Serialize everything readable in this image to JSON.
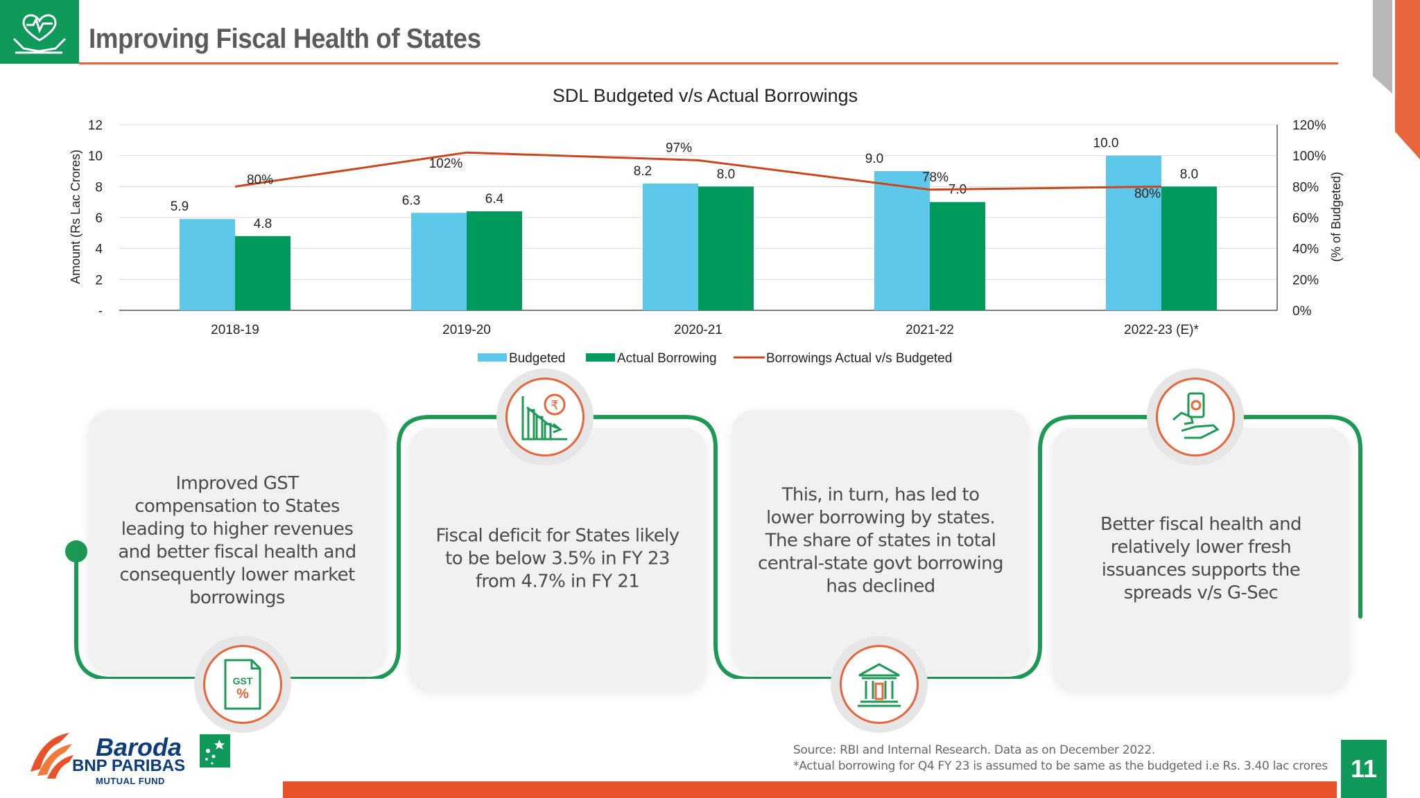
{
  "header": {
    "title": "Improving Fiscal Health of States"
  },
  "colors": {
    "green": "#0f9a5c",
    "orange": "#e8643a",
    "budgeted": "#5ec8ea",
    "actual": "#009a5c",
    "line": "#c8471e"
  },
  "chart_data": {
    "type": "bar",
    "title": "SDL Budgeted v/s Actual Borrowings",
    "categories": [
      "2018-19",
      "2019-20",
      "2020-21",
      "2021-22",
      "2022-23 (E)*"
    ],
    "series": [
      {
        "name": "Budgeted",
        "values": [
          5.9,
          6.3,
          8.2,
          9.0,
          10.0
        ],
        "labels": [
          "5.9",
          "6.3",
          "8.2",
          "9.0",
          "10.0"
        ]
      },
      {
        "name": "Actual Borrowing",
        "values": [
          4.8,
          6.4,
          8.0,
          7.0,
          8.0
        ],
        "labels": [
          "4.8",
          "6.4",
          "8.0",
          "7.0",
          "8.0"
        ]
      },
      {
        "name": "Borrowings Actual v/s Budgeted",
        "type": "line",
        "axis": "right",
        "values": [
          80,
          102,
          97,
          78,
          80
        ],
        "labels": [
          "80%",
          "102%",
          "97%",
          "78%",
          "80%"
        ]
      }
    ],
    "ylabel": "Amount (Rs Lac Crores)",
    "ylabel_right": "(% of Budgeted)",
    "ylim": [
      0,
      12
    ],
    "ylim_right": [
      0,
      120
    ],
    "yticks": [
      "-",
      "2",
      "4",
      "6",
      "8",
      "10",
      "12"
    ],
    "yticks_right": [
      "0%",
      "20%",
      "40%",
      "60%",
      "80%",
      "100%",
      "120%"
    ],
    "legend": "bottom",
    "grid": true
  },
  "cards": [
    {
      "text": "Improved GST compensation to States leading to higher revenues and better fiscal health and consequently lower market borrowings",
      "icon": "gst-icon",
      "icon_text": "GST"
    },
    {
      "text": "Fiscal deficit for States likely to be below 3.5% in FY 23 from 4.7% in FY 21",
      "icon": "declining-chart-rupee-icon",
      "icon_text": "₹"
    },
    {
      "text": "This, in turn, has led to lower borrowing by states. The share of states in total central-state govt borrowing has declined",
      "icon": "government-building-icon"
    },
    {
      "text": "Better fiscal health and relatively lower fresh issuances supports the spreads v/s G-Sec",
      "icon": "hand-money-icon"
    }
  ],
  "footer": {
    "brand_line1": "Baroda",
    "brand_line2": "BNP PARIBAS",
    "brand_line3": "MUTUAL FUND",
    "source_line1": "Source: RBI and Internal Research. Data as on December 2022.",
    "source_line2": "*Actual borrowing for Q4 FY 23 is assumed to be same as the budgeted i.e Rs. 3.40 lac crores",
    "page_number": "11"
  }
}
